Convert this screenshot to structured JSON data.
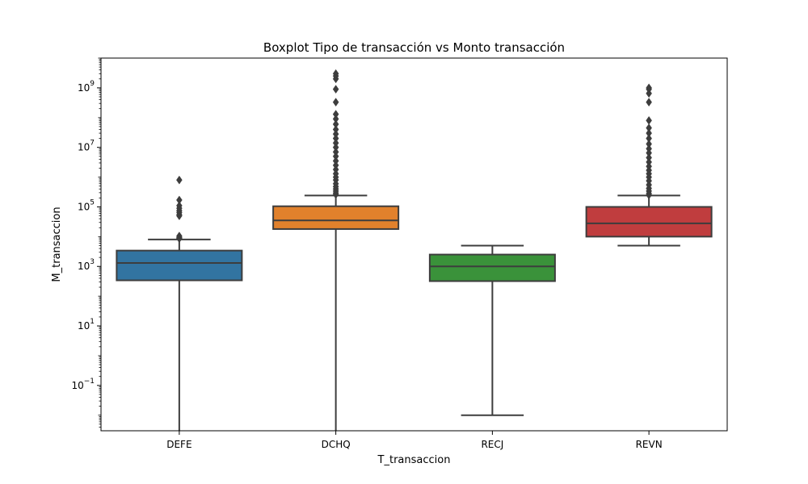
{
  "chart_data": {
    "type": "boxplot",
    "title": "Boxplot Tipo de transacción vs Monto transacción",
    "xlabel": "T_transaccion",
    "ylabel": "M_transaccion",
    "y_scale": "log",
    "ylim": [
      0.003,
      10000000000
    ],
    "y_ticks": [
      {
        "value": 0.1,
        "base": "10",
        "exp": "−1"
      },
      {
        "value": 10,
        "base": "10",
        "exp": "1"
      },
      {
        "value": 1000,
        "base": "10",
        "exp": "3"
      },
      {
        "value": 100000,
        "base": "10",
        "exp": "5"
      },
      {
        "value": 10000000,
        "base": "10",
        "exp": "7"
      },
      {
        "value": 1000000000,
        "base": "10",
        "exp": "9"
      }
    ],
    "categories": [
      "DEFE",
      "DCHQ",
      "RECJ",
      "REVN"
    ],
    "boxes": [
      {
        "category": "DEFE",
        "color": "#3274a1",
        "whisker_low": 0.003,
        "q1": 340,
        "median": 1300,
        "q3": 3400,
        "whisker_high": 8000,
        "outliers": [
          800000,
          170000,
          110000,
          90000,
          75000,
          65000,
          55000,
          50000,
          10500,
          9500,
          9000,
          8600
        ]
      },
      {
        "category": "DCHQ",
        "color": "#e1812c",
        "whisker_low": 0.003,
        "q1": 18000,
        "median": 35000,
        "q3": 105000,
        "whisker_high": 240000,
        "outliers": [
          3000000000,
          2500000000,
          2000000000,
          900000000,
          330000000,
          130000000,
          90000000,
          60000000,
          40000000,
          28000000,
          20000000,
          14000000,
          10000000,
          7000000,
          5000000,
          3500000,
          2500000,
          1800000,
          1300000,
          1000000,
          800000,
          600000,
          480000,
          400000,
          340000,
          290000,
          260000
        ]
      },
      {
        "category": "RECJ",
        "color": "#3a923a",
        "whisker_low": 0.01,
        "q1": 320,
        "median": 1000,
        "q3": 2500,
        "whisker_high": 5000,
        "outliers": []
      },
      {
        "category": "REVN",
        "color": "#c03d3e",
        "whisker_low": 5000,
        "q1": 10000,
        "median": 28000,
        "q3": 100000,
        "whisker_high": 240000,
        "outliers": [
          1000000000,
          900000000,
          650000000,
          330000000,
          80000000,
          45000000,
          30000000,
          20000000,
          13000000,
          9000000,
          6500000,
          4500000,
          3200000,
          2300000,
          1700000,
          1300000,
          1000000,
          750000,
          550000,
          420000,
          340000,
          280000,
          250000
        ]
      }
    ],
    "grid": false,
    "legend": "none"
  }
}
